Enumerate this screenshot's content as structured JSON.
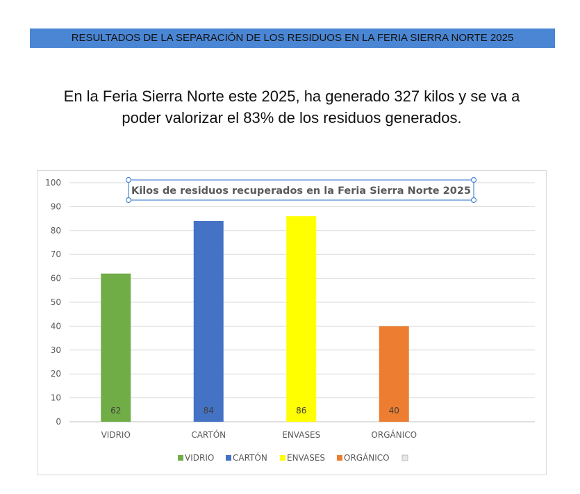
{
  "header": {
    "banner": "RESULTADOS DE LA SEPARACIÓN DE LOS RESIDUOS EN LA FERIA SIERRA NORTE 2025",
    "summary_line1": "En la Feria Sierra Norte este 2025, ha generado 327 kilos y se va a",
    "summary_line2": "poder valorizar el 83% de los residuos generados."
  },
  "chart_data": {
    "type": "bar",
    "title": "Kilos de residuos recuperados en la Feria Sierra Norte 2025",
    "categories": [
      "VIDRIO",
      "CARTÓN",
      "ENVASES",
      "ORGÁNICO"
    ],
    "values": [
      62,
      84,
      86,
      40
    ],
    "colors": [
      "#70ad47",
      "#4472c4",
      "#ffff00",
      "#ed7d31"
    ],
    "data_labels": [
      "62",
      "84",
      "86",
      "40"
    ],
    "ylim": [
      0,
      100
    ],
    "yticks": [
      0,
      10,
      20,
      30,
      40,
      50,
      60,
      70,
      80,
      90,
      100
    ],
    "grid": true,
    "legend": {
      "placement": "bottom",
      "entries": [
        "VIDRIO",
        "CARTÓN",
        "ENVASES",
        "ORGÁNICO",
        ""
      ]
    }
  }
}
